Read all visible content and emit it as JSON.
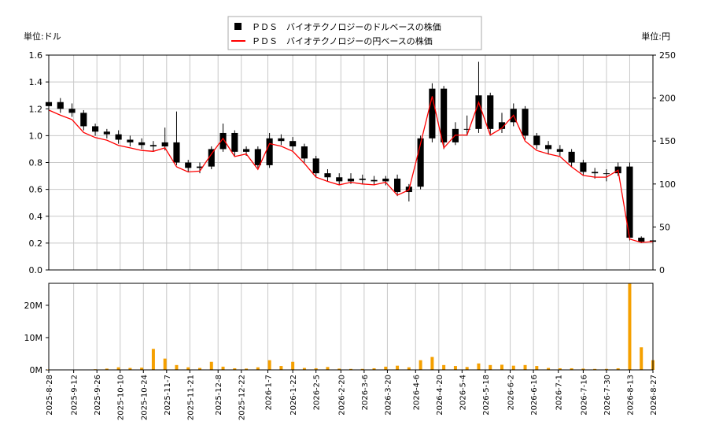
{
  "chart_data": [
    {
      "type": "candlestick",
      "y_label": "単位:ドル",
      "y2_label": "単位:円",
      "xlim": [
        "2025-8-28",
        "2026-8-27"
      ],
      "ylim": [
        0,
        1.6
      ],
      "yticks": [
        {
          "value": 0,
          "label": "0.0"
        },
        0.2,
        0.4,
        0.6,
        0.8,
        {
          "value": 1,
          "label": "1.0"
        },
        1.2,
        1.4,
        1.6
      ],
      "y2lim": [
        0,
        250
      ],
      "y2ticks": [
        0,
        50,
        100,
        150,
        200,
        250
      ],
      "grid": true,
      "x": [
        "2025-8-28",
        "2025-9-4",
        "2025-9-11",
        "2025-9-18",
        "2025-9-25",
        "2025-10-2",
        "2025-10-9",
        "2025-10-16",
        "2025-10-23",
        "2025-10-30",
        "2025-11-6",
        "2025-11-13",
        "2025-11-20",
        "2025-11-27",
        "2025-12-4",
        "2025-12-11",
        "2025-12-18",
        "2025-12-25",
        "2026-1-1",
        "2026-1-8",
        "2026-1-15",
        "2026-1-22",
        "2026-1-29",
        "2026-2-5",
        "2026-2-12",
        "2026-2-19",
        "2026-2-26",
        "2026-3-5",
        "2026-3-12",
        "2026-3-19",
        "2026-3-26",
        "2026-4-2",
        "2026-4-9",
        "2026-4-16",
        "2026-4-23",
        "2026-4-30",
        "2026-5-7",
        "2026-5-14",
        "2026-5-21",
        "2026-5-28",
        "2026-6-4",
        "2026-6-11",
        "2026-6-18",
        "2026-6-25",
        "2026-7-2",
        "2026-7-9",
        "2026-7-16",
        "2026-7-23",
        "2026-7-30",
        "2026-8-6",
        "2026-8-13",
        "2026-8-20",
        "2026-8-27"
      ],
      "series": [
        {
          "name": "ＰＤＳ　バイオテクノロジーのドルベースの株価",
          "color": "#000000",
          "open": [
            1.22,
            1.25,
            1.2,
            1.17,
            1.07,
            1.03,
            1.01,
            0.97,
            0.95,
            0.93,
            0.92,
            0.95,
            0.8,
            0.76,
            0.77,
            0.9,
            1.02,
            0.88,
            0.9,
            0.78,
            0.98,
            0.96,
            0.92,
            0.83,
            0.72,
            0.69,
            0.66,
            0.68,
            0.67,
            0.66,
            0.68,
            0.58,
            0.62,
            0.98,
            1.35,
            0.95,
            1.05,
            1.05,
            1.3,
            1.05,
            1.1,
            1.2,
            1.0,
            0.93,
            0.9,
            0.88,
            0.8,
            0.73,
            0.72,
            0.72,
            0.77,
            0.24,
            0.21
          ],
          "high": [
            1.3,
            1.28,
            1.24,
            1.19,
            1.09,
            1.05,
            1.04,
            1.0,
            0.98,
            0.96,
            1.06,
            1.18,
            0.82,
            0.8,
            0.92,
            1.09,
            1.04,
            0.92,
            0.92,
            1.02,
            1.01,
            0.99,
            0.94,
            0.85,
            0.75,
            0.72,
            0.72,
            0.71,
            0.7,
            0.7,
            0.71,
            0.64,
            1.0,
            1.39,
            1.37,
            1.1,
            1.15,
            1.55,
            1.32,
            1.17,
            1.24,
            1.22,
            1.02,
            0.96,
            0.93,
            0.9,
            0.82,
            0.76,
            0.75,
            0.8,
            0.8,
            0.25,
            0.23
          ],
          "low": [
            1.18,
            1.17,
            1.14,
            1.04,
            1.0,
            0.98,
            0.94,
            0.92,
            0.9,
            0.88,
            0.89,
            0.78,
            0.73,
            0.72,
            0.75,
            0.88,
            0.85,
            0.85,
            0.76,
            0.76,
            0.93,
            0.89,
            0.8,
            0.69,
            0.66,
            0.63,
            0.64,
            0.64,
            0.63,
            0.63,
            0.55,
            0.51,
            0.6,
            0.95,
            0.9,
            0.93,
            1.0,
            1.02,
            1.0,
            1.02,
            1.07,
            0.97,
            0.9,
            0.86,
            0.85,
            0.77,
            0.7,
            0.68,
            0.66,
            0.7,
            0.22,
            0.2,
            0.2
          ],
          "close": [
            1.25,
            1.2,
            1.17,
            1.07,
            1.03,
            1.01,
            0.97,
            0.95,
            0.93,
            0.92,
            0.95,
            0.8,
            0.76,
            0.77,
            0.9,
            1.02,
            0.88,
            0.9,
            0.78,
            0.98,
            0.96,
            0.92,
            0.83,
            0.72,
            0.69,
            0.66,
            0.68,
            0.67,
            0.66,
            0.68,
            0.58,
            0.62,
            0.98,
            1.35,
            0.95,
            1.05,
            1.05,
            1.3,
            1.05,
            1.1,
            1.2,
            1.0,
            0.93,
            0.9,
            0.88,
            0.8,
            0.73,
            0.72,
            0.72,
            0.77,
            0.24,
            0.21,
            0.22
          ]
        },
        {
          "name": "ＰＤＳ　バイオテクノロジーの円ベースの株価",
          "color": "#ff0000",
          "axis": "y2",
          "values": [
            186,
            180,
            175,
            160,
            154,
            151,
            145,
            142,
            139,
            138,
            142,
            120,
            114,
            115,
            135,
            153,
            132,
            135,
            117,
            147,
            144,
            138,
            124,
            108,
            103,
            99,
            102,
            100,
            99,
            102,
            87,
            93,
            147,
            202,
            142,
            157,
            157,
            195,
            157,
            165,
            180,
            150,
            139,
            135,
            132,
            120,
            110,
            108,
            108,
            116,
            36,
            32,
            33
          ]
        }
      ]
    },
    {
      "type": "bar",
      "xlim": [
        "2025-8-28",
        "2026-8-27"
      ],
      "xticks": [
        "2025-8-28",
        "2025-9-12",
        "2025-9-26",
        "2025-10-10",
        "2025-10-24",
        "2025-11-7",
        "2025-11-21",
        "2025-12-8",
        "2025-12-22",
        "2026-1-7",
        "2026-1-22",
        "2026-2-5",
        "2026-2-20",
        "2026-3-6",
        "2026-3-20",
        "2026-4-6",
        "2026-4-20",
        "2026-5-4",
        "2026-5-18",
        "2026-6-2",
        "2026-6-16",
        "2026-7-1",
        "2026-7-16",
        "2026-7-30",
        "2026-8-13",
        "2026-8-27"
      ],
      "ylim": [
        0,
        26800000
      ],
      "yticks": [
        {
          "value": 0,
          "label": "0M"
        },
        {
          "value": 10000000,
          "label": "10M"
        },
        {
          "value": 20000000,
          "label": "20M"
        }
      ],
      "color": "#f5a000",
      "x": [
        "2025-8-28",
        "2025-9-4",
        "2025-9-11",
        "2025-9-18",
        "2025-9-25",
        "2025-10-2",
        "2025-10-9",
        "2025-10-16",
        "2025-10-23",
        "2025-10-30",
        "2025-11-6",
        "2025-11-13",
        "2025-11-20",
        "2025-11-27",
        "2025-12-4",
        "2025-12-11",
        "2025-12-18",
        "2025-12-25",
        "2026-1-1",
        "2026-1-8",
        "2026-1-15",
        "2026-1-22",
        "2026-1-29",
        "2026-2-5",
        "2026-2-12",
        "2026-2-19",
        "2026-2-26",
        "2026-3-5",
        "2026-3-12",
        "2026-3-19",
        "2026-3-26",
        "2026-4-2",
        "2026-4-9",
        "2026-4-16",
        "2026-4-23",
        "2026-4-30",
        "2026-5-7",
        "2026-5-14",
        "2026-5-21",
        "2026-5-28",
        "2026-6-4",
        "2026-6-11",
        "2026-6-18",
        "2026-6-25",
        "2026-7-2",
        "2026-7-9",
        "2026-7-16",
        "2026-7-23",
        "2026-7-30",
        "2026-8-6",
        "2026-8-13",
        "2026-8-20",
        "2026-8-27"
      ],
      "values": [
        100000,
        100000,
        100000,
        100000,
        200000,
        400000,
        800000,
        600000,
        700000,
        6500000,
        3500000,
        1500000,
        800000,
        600000,
        2500000,
        1000000,
        500000,
        400000,
        800000,
        3000000,
        1200000,
        2500000,
        600000,
        500000,
        900000,
        400000,
        300000,
        300000,
        500000,
        1000000,
        1300000,
        800000,
        3000000,
        4000000,
        1500000,
        1200000,
        900000,
        2000000,
        1500000,
        1600000,
        1300000,
        1500000,
        1200000,
        600000,
        500000,
        500000,
        400000,
        300000,
        300000,
        500000,
        26800000,
        7000000,
        3000000
      ]
    }
  ]
}
